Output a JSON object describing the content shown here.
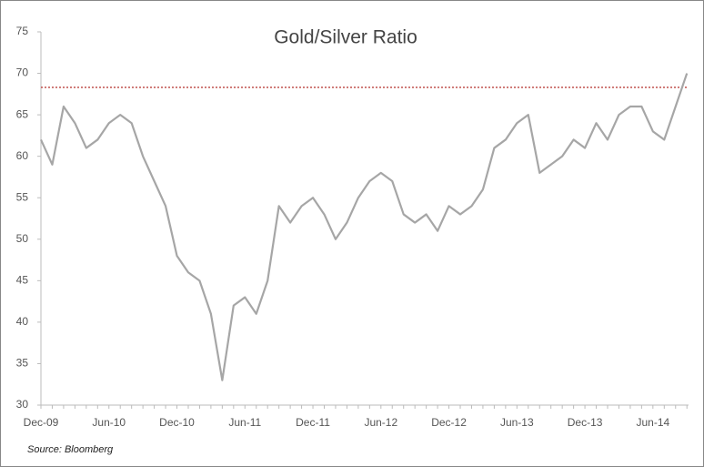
{
  "chart_data": {
    "type": "line",
    "title": "Gold/Silver Ratio",
    "source": "Source: Bloomberg",
    "categories": [
      "Dec-09",
      null,
      null,
      null,
      null,
      null,
      "Jun-10",
      null,
      null,
      null,
      null,
      null,
      "Dec-10",
      null,
      null,
      null,
      null,
      null,
      "Jun-11",
      null,
      null,
      null,
      null,
      null,
      "Dec-11",
      null,
      null,
      null,
      null,
      null,
      "Jun-12",
      null,
      null,
      null,
      null,
      null,
      "Dec-12",
      null,
      null,
      null,
      null,
      null,
      "Jun-13",
      null,
      null,
      null,
      null,
      null,
      "Dec-13",
      null,
      null,
      null,
      null,
      null,
      "Jun-14",
      null,
      null,
      null
    ],
    "series": [
      {
        "name": "Gold/Silver Ratio",
        "color": "#a6a6a6",
        "values": [
          62,
          59,
          66,
          64,
          61,
          62,
          64,
          65,
          64,
          60,
          57,
          54,
          48,
          46,
          45,
          41,
          33,
          42,
          43,
          41,
          45,
          54,
          52,
          54,
          55,
          53,
          50,
          52,
          55,
          57,
          58,
          57,
          53,
          52,
          53,
          51,
          54,
          53,
          54,
          56,
          61,
          62,
          64,
          65,
          58,
          59,
          60,
          62,
          61,
          64,
          62,
          65,
          66,
          66,
          63,
          62,
          66,
          70
        ]
      }
    ],
    "reference_line": {
      "value": 68.3,
      "color": "#c0504d"
    },
    "ylim": [
      30,
      75
    ],
    "yticks": [
      30,
      35,
      40,
      45,
      50,
      55,
      60,
      65,
      70,
      75
    ],
    "grid": false
  }
}
